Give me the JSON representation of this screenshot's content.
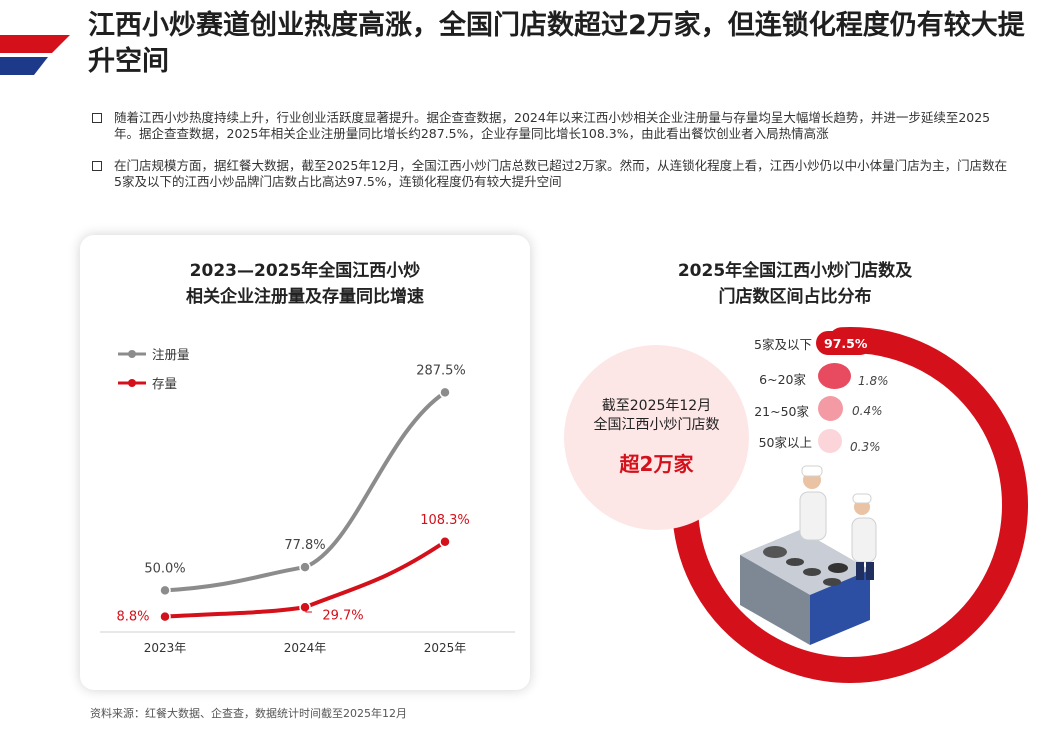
{
  "header": {
    "title": "江西小炒赛道创业热度高涨，全国门店数超过2万家，但连锁化程度仍有较大提升空间"
  },
  "bullets": [
    "随着江西小炒热度持续上升，行业创业活跃度显著提升。据企查查数据，2024年以来江西小炒相关企业注册量与存量均呈大幅增长趋势，并进一步延续至2025年。据企查查数据，2025年相关企业注册量同比增长约287.5%，企业存量同比增长108.3%，由此看出餐饮创业者入局热情高涨",
    "在门店规模方面，据红餐大数据，截至2025年12月，全国江西小炒门店总数已超过2万家。然而，从连锁化程度上看，江西小炒仍以中小体量门店为主，门店数在5家及以下的江西小炒品牌门店数占比高达97.5%，连锁化程度仍有较大提升空间"
  ],
  "colors": {
    "accent": "#d4101b",
    "grey_series": "#8c8c8c",
    "brand_blue": "#1d3a8a"
  },
  "chart_data": [
    {
      "type": "line",
      "title": "2023—2025年全国江西小炒相关企业注册量及存量同比增速",
      "title_lines": [
        "2023—2025年全国江西小炒",
        "相关企业注册量及存量同比增速"
      ],
      "categories": [
        "2023年",
        "2024年",
        "2025年"
      ],
      "series": [
        {
          "name": "注册量",
          "values": [
            50.0,
            77.8,
            287.5
          ],
          "labels": [
            "50.0%",
            "77.8%",
            "287.5%"
          ],
          "color": "#8c8c8c"
        },
        {
          "name": "存量",
          "values": [
            8.8,
            29.7,
            108.3
          ],
          "labels": [
            "8.8%",
            "29.7%",
            "108.3%"
          ],
          "color": "#d4101b"
        }
      ],
      "ylim": [
        0,
        300
      ],
      "grid": false,
      "legend": "top-left"
    },
    {
      "type": "pie",
      "title": "2025年全国江西小炒门店数及门店数区间占比分布",
      "title_lines": [
        "2025年全国江西小炒门店数及",
        "门店数区间占比分布"
      ],
      "categories": [
        "5家及以下",
        "6~20家",
        "21~50家",
        "50家以上"
      ],
      "values": [
        97.5,
        1.8,
        0.4,
        0.3
      ],
      "labels": [
        "97.5%",
        "1.8%",
        "0.4%",
        "0.3%"
      ],
      "center": {
        "line1": "截至2025年12月",
        "line2": "全国江西小炒门店数",
        "big": "超2万家"
      }
    }
  ],
  "source": "资料来源：红餐大数据、企查查，数据统计时间截至2025年12月"
}
